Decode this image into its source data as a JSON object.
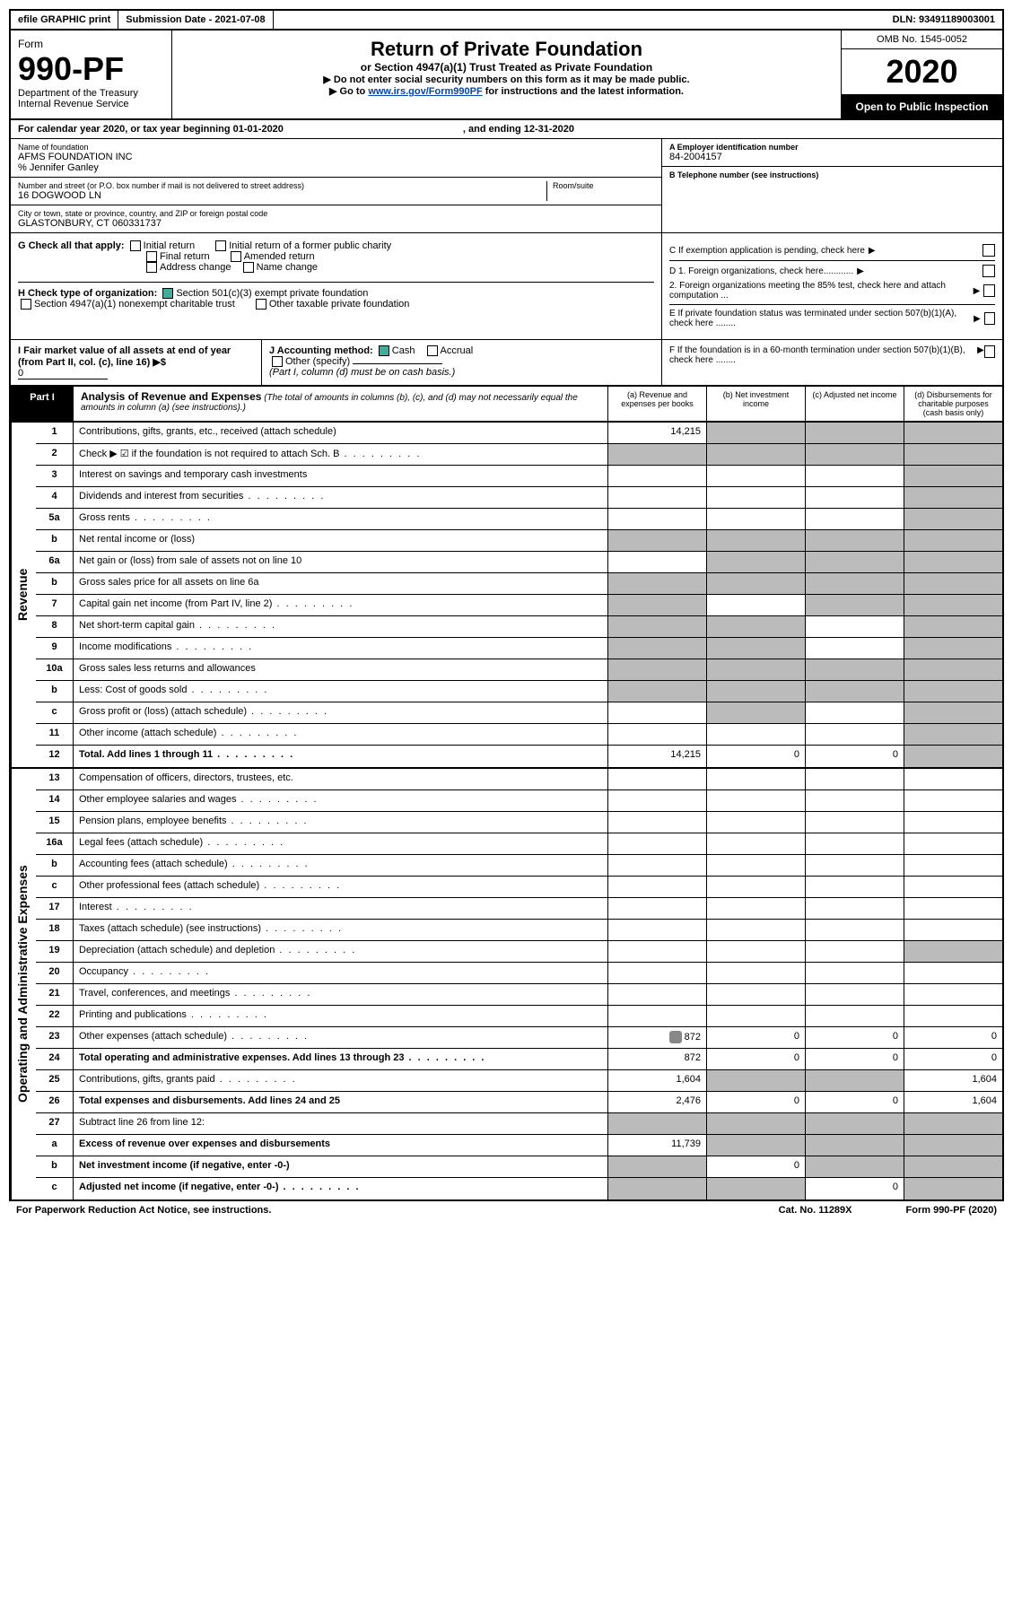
{
  "topbar": {
    "efile": "efile GRAPHIC print",
    "subdate_label": "Submission Date - 2021-07-08",
    "dln": "DLN: 93491189003001"
  },
  "header": {
    "form": "Form",
    "formno": "990-PF",
    "dept": "Department of the Treasury",
    "irs": "Internal Revenue Service",
    "title": "Return of Private Foundation",
    "subtitle": "or Section 4947(a)(1) Trust Treated as Private Foundation",
    "notice1": "▶ Do not enter social security numbers on this form as it may be made public.",
    "notice2_pre": "▶ Go to ",
    "notice2_link": "www.irs.gov/Form990PF",
    "notice2_post": " for instructions and the latest information.",
    "omb": "OMB No. 1545-0052",
    "year": "2020",
    "open": "Open to Public Inspection"
  },
  "calendar": {
    "text1": "For calendar year 2020, or tax year beginning 01-01-2020",
    "text2": ", and ending 12-31-2020"
  },
  "info": {
    "name_label": "Name of foundation",
    "name": "AFMS FOUNDATION INC",
    "co": "% Jennifer Ganley",
    "addr_label": "Number and street (or P.O. box number if mail is not delivered to street address)",
    "addr": "16 DOGWOOD LN",
    "room_label": "Room/suite",
    "city_label": "City or town, state or province, country, and ZIP or foreign postal code",
    "city": "GLASTONBURY, CT 060331737",
    "ein_label": "A Employer identification number",
    "ein": "84-2004157",
    "tel_label": "B Telephone number (see instructions)",
    "c_label": "C If exemption application is pending, check here",
    "d1": "D 1. Foreign organizations, check here............",
    "d2": "2. Foreign organizations meeting the 85% test, check here and attach computation ...",
    "e": "E If private foundation status was terminated under section 507(b)(1)(A), check here ........",
    "f": "F If the foundation is in a 60-month termination under section 507(b)(1)(B), check here ........"
  },
  "g": {
    "label": "G Check all that apply:",
    "opts": [
      "Initial return",
      "Initial return of a former public charity",
      "Final return",
      "Amended return",
      "Address change",
      "Name change"
    ]
  },
  "h": {
    "label": "H Check type of organization:",
    "opt1": "Section 501(c)(3) exempt private foundation",
    "opt2": "Section 4947(a)(1) nonexempt charitable trust",
    "opt3": "Other taxable private foundation"
  },
  "i": {
    "label": "I Fair market value of all assets at end of year (from Part II, col. (c), line 16) ▶$",
    "val": "0"
  },
  "j": {
    "label": "J Accounting method:",
    "cash": "Cash",
    "accrual": "Accrual",
    "other": "Other (specify)",
    "note": "(Part I, column (d) must be on cash basis.)"
  },
  "part1": {
    "label": "Part I",
    "title": "Analysis of Revenue and Expenses",
    "note": "(The total of amounts in columns (b), (c), and (d) may not necessarily equal the amounts in column (a) (see instructions).)",
    "cols": {
      "a": "(a) Revenue and expenses per books",
      "b": "(b) Net investment income",
      "c": "(c) Adjusted net income",
      "d": "(d) Disbursements for charitable purposes (cash basis only)"
    }
  },
  "side_rev": "Revenue",
  "side_exp": "Operating and Administrative Expenses",
  "rows_rev": [
    {
      "ln": "1",
      "desc": "Contributions, gifts, grants, etc., received (attach schedule)",
      "a": "14,215",
      "b": "",
      "c": "",
      "d": "",
      "shade_b": true,
      "shade_c": true,
      "shade_d": true
    },
    {
      "ln": "2",
      "desc": "Check ▶ ☑ if the foundation is not required to attach Sch. B",
      "a": "",
      "b": "",
      "c": "",
      "d": "",
      "shade_a": true,
      "shade_b": true,
      "shade_c": true,
      "shade_d": true,
      "dots": true
    },
    {
      "ln": "3",
      "desc": "Interest on savings and temporary cash investments",
      "a": "",
      "b": "",
      "c": "",
      "d": "",
      "shade_d": true
    },
    {
      "ln": "4",
      "desc": "Dividends and interest from securities",
      "a": "",
      "b": "",
      "c": "",
      "d": "",
      "shade_d": true,
      "dots": true
    },
    {
      "ln": "5a",
      "desc": "Gross rents",
      "a": "",
      "b": "",
      "c": "",
      "d": "",
      "shade_d": true,
      "dots": true
    },
    {
      "ln": "b",
      "desc": "Net rental income or (loss)",
      "a": "",
      "b": "",
      "c": "",
      "d": "",
      "shade_a": true,
      "shade_b": true,
      "shade_c": true,
      "shade_d": true
    },
    {
      "ln": "6a",
      "desc": "Net gain or (loss) from sale of assets not on line 10",
      "a": "",
      "b": "",
      "c": "",
      "d": "",
      "shade_b": true,
      "shade_c": true,
      "shade_d": true
    },
    {
      "ln": "b",
      "desc": "Gross sales price for all assets on line 6a",
      "a": "",
      "b": "",
      "c": "",
      "d": "",
      "shade_a": true,
      "shade_b": true,
      "shade_c": true,
      "shade_d": true
    },
    {
      "ln": "7",
      "desc": "Capital gain net income (from Part IV, line 2)",
      "a": "",
      "b": "",
      "c": "",
      "d": "",
      "shade_a": true,
      "shade_c": true,
      "shade_d": true,
      "dots": true
    },
    {
      "ln": "8",
      "desc": "Net short-term capital gain",
      "a": "",
      "b": "",
      "c": "",
      "d": "",
      "shade_a": true,
      "shade_b": true,
      "shade_d": true,
      "dots": true
    },
    {
      "ln": "9",
      "desc": "Income modifications",
      "a": "",
      "b": "",
      "c": "",
      "d": "",
      "shade_a": true,
      "shade_b": true,
      "shade_d": true,
      "dots": true
    },
    {
      "ln": "10a",
      "desc": "Gross sales less returns and allowances",
      "a": "",
      "b": "",
      "c": "",
      "d": "",
      "shade_a": true,
      "shade_b": true,
      "shade_c": true,
      "shade_d": true
    },
    {
      "ln": "b",
      "desc": "Less: Cost of goods sold",
      "a": "",
      "b": "",
      "c": "",
      "d": "",
      "shade_a": true,
      "shade_b": true,
      "shade_c": true,
      "shade_d": true,
      "dots": true
    },
    {
      "ln": "c",
      "desc": "Gross profit or (loss) (attach schedule)",
      "a": "",
      "b": "",
      "c": "",
      "d": "",
      "shade_b": true,
      "shade_d": true,
      "dots": true
    },
    {
      "ln": "11",
      "desc": "Other income (attach schedule)",
      "a": "",
      "b": "",
      "c": "",
      "d": "",
      "shade_d": true,
      "dots": true
    },
    {
      "ln": "12",
      "desc": "Total. Add lines 1 through 11",
      "a": "14,215",
      "b": "0",
      "c": "0",
      "d": "",
      "shade_d": true,
      "bold": true,
      "dots": true
    }
  ],
  "rows_exp": [
    {
      "ln": "13",
      "desc": "Compensation of officers, directors, trustees, etc.",
      "a": "",
      "b": "",
      "c": "",
      "d": ""
    },
    {
      "ln": "14",
      "desc": "Other employee salaries and wages",
      "a": "",
      "b": "",
      "c": "",
      "d": "",
      "dots": true
    },
    {
      "ln": "15",
      "desc": "Pension plans, employee benefits",
      "a": "",
      "b": "",
      "c": "",
      "d": "",
      "dots": true
    },
    {
      "ln": "16a",
      "desc": "Legal fees (attach schedule)",
      "a": "",
      "b": "",
      "c": "",
      "d": "",
      "dots": true
    },
    {
      "ln": "b",
      "desc": "Accounting fees (attach schedule)",
      "a": "",
      "b": "",
      "c": "",
      "d": "",
      "dots": true
    },
    {
      "ln": "c",
      "desc": "Other professional fees (attach schedule)",
      "a": "",
      "b": "",
      "c": "",
      "d": "",
      "dots": true
    },
    {
      "ln": "17",
      "desc": "Interest",
      "a": "",
      "b": "",
      "c": "",
      "d": "",
      "dots": true
    },
    {
      "ln": "18",
      "desc": "Taxes (attach schedule) (see instructions)",
      "a": "",
      "b": "",
      "c": "",
      "d": "",
      "dots": true
    },
    {
      "ln": "19",
      "desc": "Depreciation (attach schedule) and depletion",
      "a": "",
      "b": "",
      "c": "",
      "d": "",
      "shade_d": true,
      "dots": true
    },
    {
      "ln": "20",
      "desc": "Occupancy",
      "a": "",
      "b": "",
      "c": "",
      "d": "",
      "dots": true
    },
    {
      "ln": "21",
      "desc": "Travel, conferences, and meetings",
      "a": "",
      "b": "",
      "c": "",
      "d": "",
      "dots": true
    },
    {
      "ln": "22",
      "desc": "Printing and publications",
      "a": "",
      "b": "",
      "c": "",
      "d": "",
      "dots": true
    },
    {
      "ln": "23",
      "desc": "Other expenses (attach schedule)",
      "a": "872",
      "b": "0",
      "c": "0",
      "d": "0",
      "att": true,
      "dots": true
    },
    {
      "ln": "24",
      "desc": "Total operating and administrative expenses. Add lines 13 through 23",
      "a": "872",
      "b": "0",
      "c": "0",
      "d": "0",
      "bold": true,
      "dots": true
    },
    {
      "ln": "25",
      "desc": "Contributions, gifts, grants paid",
      "a": "1,604",
      "b": "",
      "c": "",
      "d": "1,604",
      "shade_b": true,
      "shade_c": true,
      "dots": true
    },
    {
      "ln": "26",
      "desc": "Total expenses and disbursements. Add lines 24 and 25",
      "a": "2,476",
      "b": "0",
      "c": "0",
      "d": "1,604",
      "bold": true
    },
    {
      "ln": "27",
      "desc": "Subtract line 26 from line 12:",
      "a": "",
      "b": "",
      "c": "",
      "d": "",
      "shade_a": true,
      "shade_b": true,
      "shade_c": true,
      "shade_d": true
    },
    {
      "ln": "a",
      "desc": "Excess of revenue over expenses and disbursements",
      "a": "11,739",
      "b": "",
      "c": "",
      "d": "",
      "shade_b": true,
      "shade_c": true,
      "shade_d": true,
      "bold": true
    },
    {
      "ln": "b",
      "desc": "Net investment income (if negative, enter -0-)",
      "a": "",
      "b": "0",
      "c": "",
      "d": "",
      "shade_a": true,
      "shade_c": true,
      "shade_d": true,
      "bold": true
    },
    {
      "ln": "c",
      "desc": "Adjusted net income (if negative, enter -0-)",
      "a": "",
      "b": "",
      "c": "0",
      "d": "",
      "shade_a": true,
      "shade_b": true,
      "shade_d": true,
      "bold": true,
      "dots": true
    }
  ],
  "footer": {
    "left": "For Paperwork Reduction Act Notice, see instructions.",
    "mid": "Cat. No. 11289X",
    "right": "Form 990-PF (2020)"
  }
}
